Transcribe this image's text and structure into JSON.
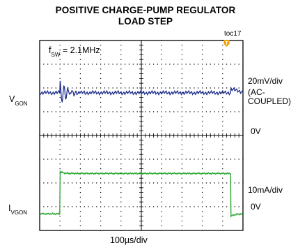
{
  "title_line1": "POSITIVE CHARGE-PUMP REGULATOR",
  "title_line2": "LOAD STEP",
  "figure_id": "toc17",
  "trigger_marker": "T",
  "annotation": {
    "prefix": "f",
    "sub": "SW",
    "suffix": " = 2.1MHz"
  },
  "channels": {
    "ch1": {
      "prefix": "V",
      "sub": "GON",
      "scale": "20mV/div",
      "coupling_line1": "(AC-",
      "coupling_line2": "COUPLED)",
      "zero": "0V",
      "color": "#1f2f8f"
    },
    "ch2": {
      "prefix": "I",
      "sub": "VGON",
      "scale": "10mA/div",
      "zero": "0V",
      "color": "#22a22a"
    }
  },
  "time_scale": "100µs/div",
  "colors": {
    "trigger": "#f0a000",
    "grid": "#000000"
  },
  "chart_data": {
    "type": "line",
    "title": "POSITIVE CHARGE-PUMP REGULATOR LOAD STEP",
    "xlabel": "100µs/div",
    "x_divisions": 10,
    "y_divisions": 8,
    "grid": true,
    "series": [
      {
        "name": "VGON",
        "units": "divisions",
        "baseline_div": 5.8,
        "events": [
          {
            "x_div": 1.0,
            "type": "ringing",
            "peak_div": 0.7
          },
          {
            "x_div": 9.4,
            "type": "overshoot",
            "peak_div": 0.5
          }
        ]
      },
      {
        "name": "IVGON",
        "units": "divisions",
        "low_div": 0.7,
        "high_div": 2.4,
        "step_up_x_div": 1.0,
        "step_down_x_div": 9.4
      }
    ]
  }
}
